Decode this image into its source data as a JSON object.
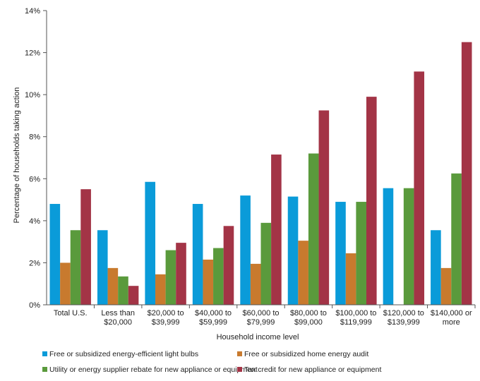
{
  "chart_data": {
    "type": "bar",
    "categories": [
      [
        "Total U.S."
      ],
      [
        "Less than",
        "$20,000"
      ],
      [
        "$20,000 to",
        "$39,999"
      ],
      [
        "$40,000 to",
        "$59,999"
      ],
      [
        "$60,000 to",
        "$79,999"
      ],
      [
        "$80,000 to",
        "$99,000"
      ],
      [
        "$100,000 to",
        "$119,999"
      ],
      [
        "$120,000 to",
        "$139,999"
      ],
      [
        "$140,000 or",
        "more"
      ]
    ],
    "series": [
      {
        "name": "Free or subsidized energy-efficient light bulbs",
        "color": "#0a9bd9",
        "values": [
          4.8,
          3.55,
          5.85,
          4.8,
          5.2,
          5.15,
          4.9,
          5.55,
          3.55
        ]
      },
      {
        "name": "Free or subsidized home energy audit",
        "color": "#c87a2e",
        "values": [
          2.0,
          1.75,
          1.45,
          2.15,
          1.95,
          3.05,
          2.45,
          null,
          1.75
        ]
      },
      {
        "name": "Utility or energy supplier rebate for new appliance or equipment",
        "color": "#5a9a3c",
        "values": [
          3.55,
          1.35,
          2.6,
          2.7,
          3.9,
          7.2,
          4.9,
          5.55,
          6.25
        ]
      },
      {
        "name": "Tax credit for new appliance or equipment",
        "color": "#a33446",
        "values": [
          5.5,
          0.9,
          2.95,
          3.75,
          7.15,
          9.25,
          9.9,
          11.1,
          12.5
        ]
      }
    ],
    "ylabel": "Percentage of households taking action",
    "xlabel": "Household income level",
    "ylim": [
      0,
      14
    ],
    "yticks": [
      0,
      2,
      4,
      6,
      8,
      10,
      12,
      14
    ],
    "ytick_suffix": "%",
    "grid": false,
    "legend_position": "bottom"
  }
}
